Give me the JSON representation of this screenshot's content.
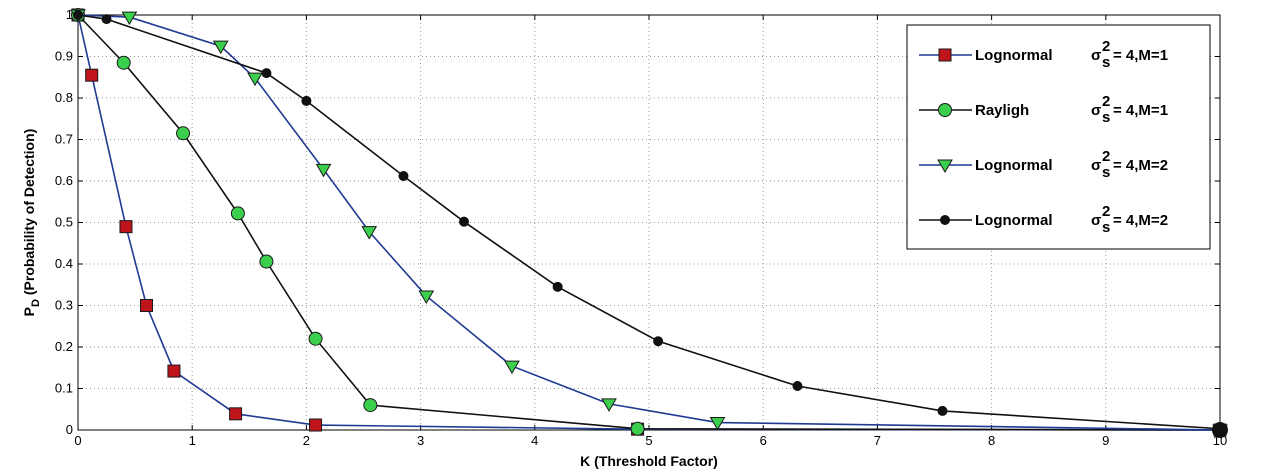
{
  "chart_data": {
    "type": "line",
    "xlabel": "K (Threshold Factor)",
    "ylabel_main": "P",
    "ylabel_sub": "D",
    "ylabel_rest": " (Probability of Detection)",
    "xlim": [
      0,
      10
    ],
    "ylim": [
      0,
      1
    ],
    "xticks": [
      0,
      1,
      2,
      3,
      4,
      5,
      6,
      7,
      8,
      9,
      10
    ],
    "yticks": [
      0,
      0.1,
      0.2,
      0.3,
      0.4,
      0.5,
      0.6,
      0.7,
      0.8,
      0.9,
      1
    ],
    "grid": true,
    "legend_position": "top-right",
    "series": [
      {
        "label_main": "Lognormal",
        "label_param": "4,M=1",
        "line_color": "#1f3a93",
        "marker": "square",
        "marker_fill": "#c0141c",
        "marker_stroke": "#1a1a1a",
        "x": [
          0,
          0.12,
          0.42,
          0.6,
          0.84,
          1.38,
          2.08,
          4.9,
          10
        ],
        "y": [
          1.0,
          0.855,
          0.49,
          0.3,
          0.142,
          0.039,
          0.012,
          0.002,
          0.0
        ]
      },
      {
        "label_main": "Rayligh",
        "label_param": "4,M=1",
        "line_color": "#111111",
        "marker": "circle",
        "marker_fill": "#3ccf4e",
        "marker_stroke": "#1a1a1a",
        "x": [
          0,
          0.4,
          0.92,
          1.4,
          1.65,
          2.08,
          2.56,
          4.9,
          10
        ],
        "y": [
          1.0,
          0.885,
          0.715,
          0.522,
          0.406,
          0.22,
          0.06,
          0.003,
          0.0
        ]
      },
      {
        "label_main": "Lognormal",
        "label_param": "4,M=2",
        "line_color": "#1f3a93",
        "marker": "triangle-down",
        "marker_fill": "#3ccf4e",
        "marker_stroke": "#1a1a1a",
        "x": [
          0,
          0.45,
          1.25,
          1.55,
          2.15,
          2.55,
          3.05,
          3.8,
          4.65,
          5.6,
          10
        ],
        "y": [
          1.0,
          0.995,
          0.925,
          0.848,
          0.628,
          0.478,
          0.323,
          0.154,
          0.063,
          0.018,
          0.0
        ]
      },
      {
        "label_main": "Lognormal",
        "label_param": "4,M=2",
        "line_color": "#111111",
        "marker": "circle-small",
        "marker_fill": "#111111",
        "marker_stroke": "#111111",
        "x": [
          0,
          0.25,
          1.65,
          2.0,
          2.85,
          3.38,
          4.2,
          5.08,
          6.3,
          7.57,
          10
        ],
        "y": [
          1.0,
          0.99,
          0.86,
          0.793,
          0.612,
          0.502,
          0.345,
          0.214,
          0.106,
          0.046,
          0.003
        ]
      }
    ]
  }
}
